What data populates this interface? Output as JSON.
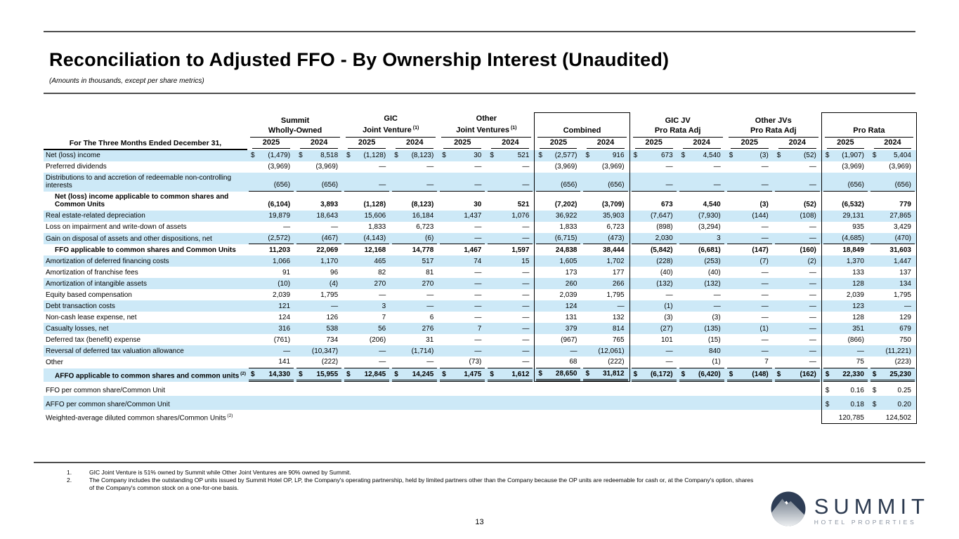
{
  "page": {
    "title": "Reconciliation to Adjusted FFO - By Ownership Interest (Unaudited)",
    "subtitle": "(Amounts in thousands, except per share metrics)",
    "page_number": "13"
  },
  "logo": {
    "word": "SUMMIT",
    "tagline": "HOTEL PROPERTIES"
  },
  "colors": {
    "stripe": "#cde9f7",
    "rule": "#4d4d4d",
    "logo_navy": "#2e3d55",
    "logo_gray": "#87909e"
  },
  "footnotes": [
    {
      "num": "1.",
      "text": "GIC Joint Venture is 51% owned by Summit while Other Joint Ventures are 90% owned by Summit."
    },
    {
      "num": "2.",
      "text": "The Company includes the outstanding OP units issued by Summit Hotel OP, LP, the Company's operating partnership, held by limited partners other than the Company because the OP units are redeemable for cash or, at the Company's option, shares of the Company's common stock on a one-for-one basis."
    }
  ],
  "table": {
    "period_label": "For The Three Months Ended December 31,",
    "years": [
      "2025",
      "2024"
    ],
    "groups": [
      {
        "line1": "Summit",
        "line2": "Wholly-Owned",
        "sup": "",
        "boxed": false
      },
      {
        "line1": "GIC",
        "line2": "Joint Venture",
        "sup": "(1)",
        "boxed": false
      },
      {
        "line1": "Other",
        "line2": "Joint Ventures",
        "sup": "(1)",
        "boxed": false
      },
      {
        "line1": "",
        "line2": "Combined",
        "sup": "",
        "boxed": true
      },
      {
        "line1": "GIC JV",
        "line2": "Pro Rata Adj",
        "sup": "",
        "boxed": false
      },
      {
        "line1": "Other JVs",
        "line2": "Pro Rata Adj",
        "sup": "",
        "boxed": false
      },
      {
        "line1": "",
        "line2": "Pro Rata",
        "sup": "",
        "boxed": true
      }
    ],
    "rows": [
      {
        "label": "Net (loss) income",
        "dollar": true,
        "in_combined_box": true,
        "values": [
          "(1,479)",
          "8,518",
          "(1,128)",
          "(8,123)",
          "30",
          "521",
          "(2,577)",
          "916",
          "673",
          "4,540",
          "(3)",
          "(52)",
          "(1,907)",
          "5,404"
        ]
      },
      {
        "label": "Preferred dividends",
        "in_combined_box": true,
        "values": [
          "(3,969)",
          "(3,969)",
          "—",
          "—",
          "—",
          "—",
          "(3,969)",
          "(3,969)",
          "—",
          "—",
          "—",
          "—",
          "(3,969)",
          "(3,969)"
        ]
      },
      {
        "label": "Distributions to and accretion of redeemable non-controlling interests",
        "rule": "single",
        "in_combined_box": true,
        "values": [
          "(656)",
          "(656)",
          "—",
          "—",
          "—",
          "—",
          "(656)",
          "(656)",
          "—",
          "—",
          "—",
          "—",
          "(656)",
          "(656)"
        ]
      },
      {
        "label": "Net (loss) income applicable to common shares and Common Units",
        "bold": true,
        "indent": true,
        "in_combined_box": true,
        "values": [
          "(6,104)",
          "3,893",
          "(1,128)",
          "(8,123)",
          "30",
          "521",
          "(7,202)",
          "(3,709)",
          "673",
          "4,540",
          "(3)",
          "(52)",
          "(6,532)",
          "779"
        ]
      },
      {
        "label": "Real estate-related depreciation",
        "in_combined_box": true,
        "values": [
          "19,879",
          "18,643",
          "15,606",
          "16,184",
          "1,437",
          "1,076",
          "36,922",
          "35,903",
          "(7,647)",
          "(7,930)",
          "(144)",
          "(108)",
          "29,131",
          "27,865"
        ]
      },
      {
        "label": "Loss on impairment and write-down of assets",
        "in_combined_box": true,
        "values": [
          "—",
          "—",
          "1,833",
          "6,723",
          "—",
          "—",
          "1,833",
          "6,723",
          "(898)",
          "(3,294)",
          "—",
          "—",
          "935",
          "3,429"
        ]
      },
      {
        "label": "Gain on disposal of assets and other dispositions, net",
        "rule": "single",
        "in_combined_box": true,
        "values": [
          "(2,572)",
          "(467)",
          "(4,143)",
          "(6)",
          "—",
          "—",
          "(6,715)",
          "(473)",
          "2,030",
          "3",
          "—",
          "—",
          "(4,685)",
          "(470)"
        ]
      },
      {
        "label": "FFO applicable to common shares and Common Units",
        "bold": true,
        "indent": true,
        "in_combined_box": true,
        "values": [
          "11,203",
          "22,069",
          "12,168",
          "14,778",
          "1,467",
          "1,597",
          "24,838",
          "38,444",
          "(5,842)",
          "(6,681)",
          "(147)",
          "(160)",
          "18,849",
          "31,603"
        ]
      },
      {
        "label": "Amortization of deferred financing costs",
        "in_combined_box": true,
        "values": [
          "1,066",
          "1,170",
          "465",
          "517",
          "74",
          "15",
          "1,605",
          "1,702",
          "(228)",
          "(253)",
          "(7)",
          "(2)",
          "1,370",
          "1,447"
        ]
      },
      {
        "label": "Amortization of franchise fees",
        "in_combined_box": true,
        "values": [
          "91",
          "96",
          "82",
          "81",
          "—",
          "—",
          "173",
          "177",
          "(40)",
          "(40)",
          "—",
          "—",
          "133",
          "137"
        ]
      },
      {
        "label": "Amortization of intangible assets",
        "in_combined_box": true,
        "values": [
          "(10)",
          "(4)",
          "270",
          "270",
          "—",
          "—",
          "260",
          "266",
          "(132)",
          "(132)",
          "—",
          "—",
          "128",
          "134"
        ]
      },
      {
        "label": "Equity based compensation",
        "in_combined_box": true,
        "values": [
          "2,039",
          "1,795",
          "—",
          "—",
          "—",
          "—",
          "2,039",
          "1,795",
          "—",
          "—",
          "—",
          "—",
          "2,039",
          "1,795"
        ]
      },
      {
        "label": "Debt transaction costs",
        "in_combined_box": true,
        "values": [
          "121",
          "—",
          "3",
          "—",
          "—",
          "—",
          "124",
          "—",
          "(1)",
          "—",
          "—",
          "—",
          "123",
          "—"
        ]
      },
      {
        "label": "Non-cash lease expense, net",
        "in_combined_box": true,
        "values": [
          "124",
          "126",
          "7",
          "6",
          "—",
          "—",
          "131",
          "132",
          "(3)",
          "(3)",
          "—",
          "—",
          "128",
          "129"
        ]
      },
      {
        "label": "Casualty losses, net",
        "in_combined_box": true,
        "values": [
          "316",
          "538",
          "56",
          "276",
          "7",
          "—",
          "379",
          "814",
          "(27)",
          "(135)",
          "(1)",
          "—",
          "351",
          "679"
        ]
      },
      {
        "label": "Deferred tax (benefit) expense",
        "in_combined_box": true,
        "values": [
          "(761)",
          "734",
          "(206)",
          "31",
          "—",
          "—",
          "(967)",
          "765",
          "101",
          "(15)",
          "—",
          "—",
          "(866)",
          "750"
        ]
      },
      {
        "label": "Reversal of deferred tax valuation allowance",
        "in_combined_box": true,
        "values": [
          "—",
          "(10,347)",
          "—",
          "(1,714)",
          "—",
          "—",
          "—",
          "(12,061)",
          "—",
          "840",
          "—",
          "—",
          "—",
          "(11,221)"
        ]
      },
      {
        "label": "Other",
        "rule": "single",
        "in_combined_box": true,
        "values": [
          "141",
          "(222)",
          "—",
          "—",
          "(73)",
          "—",
          "68",
          "(222)",
          "—",
          "(1)",
          "7",
          "—",
          "75",
          "(223)"
        ]
      },
      {
        "label": "AFFO applicable to common shares and common units",
        "sup": "(2)",
        "bold": true,
        "indent": true,
        "dollar": true,
        "rule": "double",
        "in_combined_box": true,
        "combined_box_end": true,
        "values": [
          "14,330",
          "15,955",
          "12,845",
          "14,245",
          "1,475",
          "1,612",
          "28,650",
          "31,812",
          "(6,172)",
          "(6,420)",
          "(148)",
          "(162)",
          "22,330",
          "25,230"
        ]
      },
      {
        "label": "FFO per common share/Common Unit",
        "dollar": true,
        "tall": true,
        "values": [
          "",
          "",
          "",
          "",
          "",
          "",
          "",
          "",
          "",
          "",
          "",
          "",
          "0.16",
          "0.25"
        ]
      },
      {
        "label": "AFFO per common share/Common Unit",
        "dollar": true,
        "tall": true,
        "values": [
          "",
          "",
          "",
          "",
          "",
          "",
          "",
          "",
          "",
          "",
          "",
          "",
          "0.18",
          "0.20"
        ]
      },
      {
        "label": "Weighted-average diluted common shares/Common Units",
        "sup": "(2)",
        "tall": true,
        "values": [
          "",
          "",
          "",
          "",
          "",
          "",
          "",
          "",
          "",
          "",
          "",
          "",
          "120,785",
          "124,502"
        ]
      }
    ]
  }
}
